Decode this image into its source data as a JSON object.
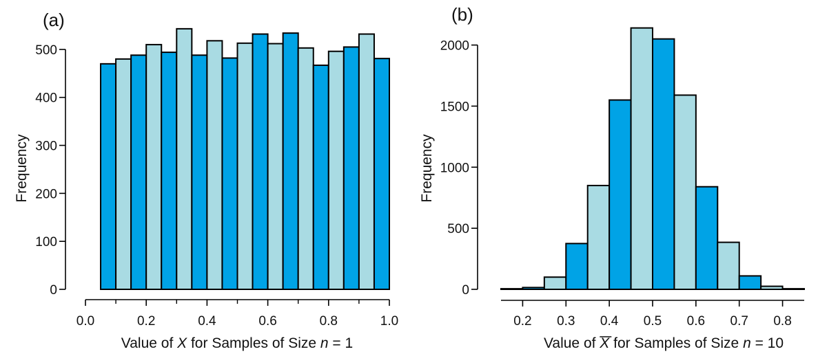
{
  "colors": {
    "dark_bar": "#00a3e6",
    "light_bar": "#a9dbe3",
    "outline": "#000000"
  },
  "chart_data": [
    {
      "type": "bar",
      "panel_label": "(a)",
      "ylabel": "Frequency",
      "xlabel": {
        "prefix": "Value of ",
        "var": "X",
        "middle": " for Samples of Size ",
        "n": "n",
        "suffix": " = 1"
      },
      "bin_edges": [
        0.05,
        0.1,
        0.15,
        0.2,
        0.25,
        0.3,
        0.35,
        0.4,
        0.45,
        0.5,
        0.55,
        0.6,
        0.65,
        0.7,
        0.75,
        0.8,
        0.85,
        0.9,
        0.95,
        1.0
      ],
      "values": [
        470,
        480,
        488,
        510,
        494,
        543,
        488,
        518,
        482,
        513,
        532,
        512,
        534,
        503,
        467,
        496,
        505,
        532,
        481
      ],
      "colors": [
        "dark",
        "light",
        "dark",
        "light",
        "dark",
        "light",
        "dark",
        "light",
        "dark",
        "light",
        "dark",
        "light",
        "dark",
        "light",
        "dark",
        "light",
        "dark",
        "light",
        "dark"
      ],
      "xlim": [
        0.0,
        1.0
      ],
      "ylim": [
        0,
        560
      ],
      "xticks": [
        0.0,
        0.2,
        0.4,
        0.6,
        0.8,
        1.0
      ],
      "xtick_labels": [
        "0.0",
        "0.2",
        "0.4",
        "0.6",
        "0.8",
        "1.0"
      ],
      "xminor": [
        0.1,
        0.3,
        0.5,
        0.7,
        0.9
      ],
      "yticks": [
        0,
        100,
        200,
        300,
        400,
        500
      ],
      "ytick_labels": [
        "0",
        "100",
        "200",
        "300",
        "400",
        "500"
      ],
      "grid": false
    },
    {
      "type": "bar",
      "panel_label": "(b)",
      "ylabel": "Frequency",
      "xlabel": {
        "prefix": "Value of ",
        "var": "X",
        "bar_over_var": true,
        "middle": " for Samples of Size ",
        "n": "n",
        "suffix": " = 10"
      },
      "bin_edges": [
        0.15,
        0.2,
        0.25,
        0.3,
        0.35,
        0.4,
        0.45,
        0.5,
        0.55,
        0.6,
        0.65,
        0.7,
        0.75,
        0.8,
        0.85
      ],
      "values": [
        5,
        15,
        100,
        375,
        850,
        1550,
        2140,
        2050,
        1590,
        840,
        385,
        110,
        25,
        5
      ],
      "colors": [
        "light",
        "dark",
        "light",
        "dark",
        "light",
        "dark",
        "light",
        "dark",
        "light",
        "dark",
        "light",
        "dark",
        "light",
        "dark"
      ],
      "xlim": [
        0.15,
        0.85
      ],
      "ylim": [
        0,
        2200
      ],
      "xticks": [
        0.2,
        0.3,
        0.4,
        0.5,
        0.6,
        0.7,
        0.8
      ],
      "xtick_labels": [
        "0.2",
        "0.3",
        "0.4",
        "0.5",
        "0.6",
        "0.7",
        "0.8"
      ],
      "yticks": [
        0,
        500,
        1000,
        1500,
        2000
      ],
      "ytick_labels": [
        "0",
        "500",
        "1000",
        "1500",
        "2000"
      ],
      "grid": false
    }
  ]
}
